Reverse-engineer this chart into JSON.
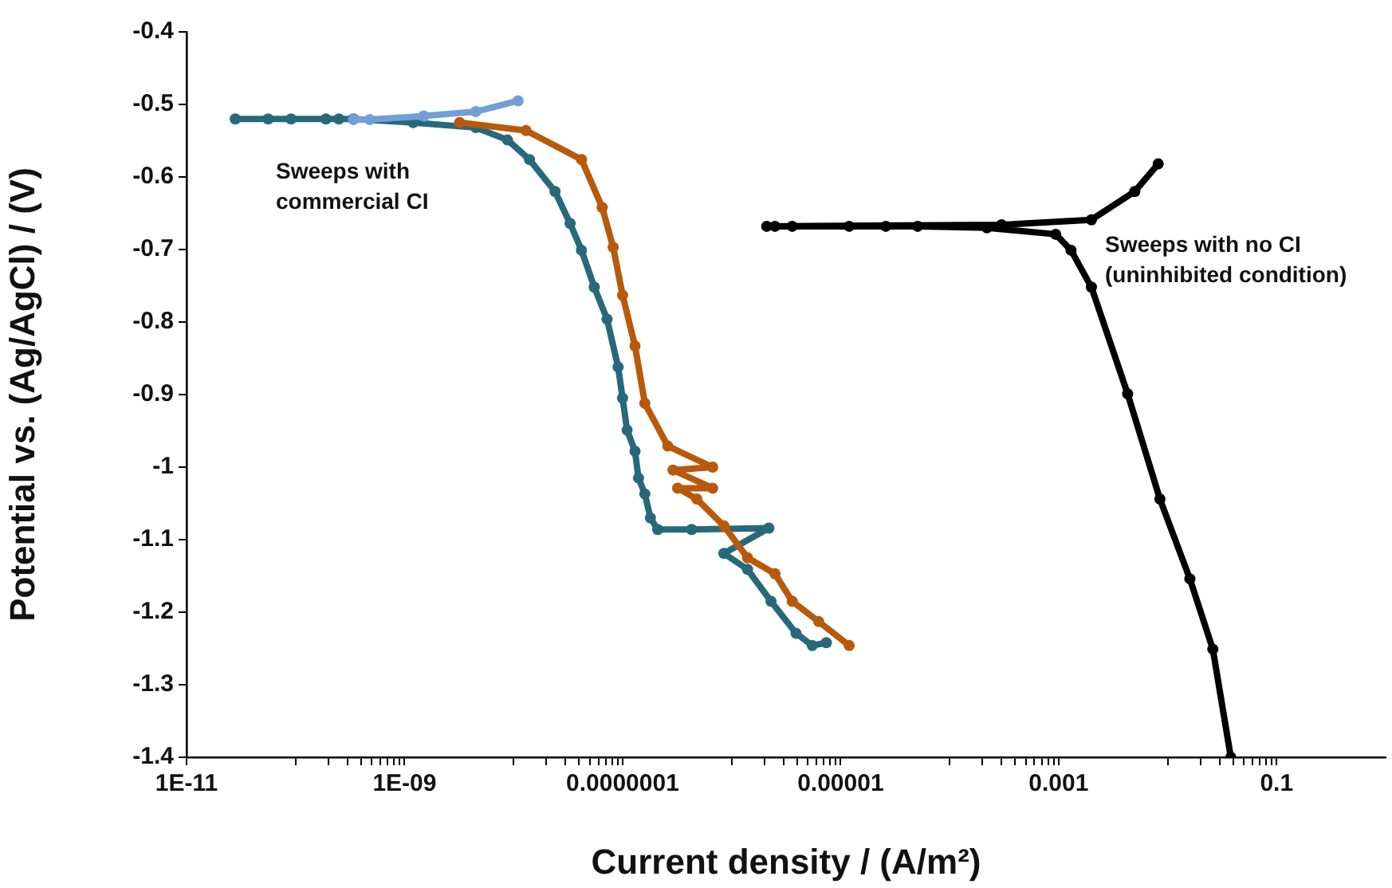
{
  "chart_data": {
    "type": "line",
    "xlabel": "Current density / (A/m²)",
    "ylabel": "Potential vs. (Ag/AgCl) / (V)",
    "log": "x",
    "marker": "circle",
    "line_style": "solid",
    "grid": false,
    "legend": false,
    "xlim": [
      1e-11,
      1
    ],
    "ylim": [
      -1.4,
      -0.4
    ],
    "yticks": [
      -1.4,
      -1.3,
      -1.2,
      -1.1,
      -1,
      -0.9,
      -0.8,
      -0.7,
      -0.6,
      -0.5,
      -0.4
    ],
    "xticks": [
      {
        "value": 1e-11,
        "label": "1E-11"
      },
      {
        "value": 1e-10,
        "label": null
      },
      {
        "value": 2e-10,
        "label": null
      },
      {
        "value": 3e-10,
        "label": null
      },
      {
        "value": 4e-10,
        "label": null
      },
      {
        "value": 5e-10,
        "label": null
      },
      {
        "value": 6e-10,
        "label": null
      },
      {
        "value": 7e-10,
        "label": null
      },
      {
        "value": 8e-10,
        "label": null
      },
      {
        "value": 9e-10,
        "label": null
      },
      {
        "value": 1e-09,
        "label": "1E-09"
      },
      {
        "value": 1e-08,
        "label": null
      },
      {
        "value": 2e-08,
        "label": null
      },
      {
        "value": 3e-08,
        "label": null
      },
      {
        "value": 4e-08,
        "label": null
      },
      {
        "value": 5e-08,
        "label": null
      },
      {
        "value": 6e-08,
        "label": null
      },
      {
        "value": 7e-08,
        "label": null
      },
      {
        "value": 8e-08,
        "label": null
      },
      {
        "value": 9e-08,
        "label": null
      },
      {
        "value": 1e-07,
        "label": "0.0000001"
      },
      {
        "value": 1e-06,
        "label": null
      },
      {
        "value": 2e-06,
        "label": null
      },
      {
        "value": 3e-06,
        "label": null
      },
      {
        "value": 4e-06,
        "label": null
      },
      {
        "value": 5e-06,
        "label": null
      },
      {
        "value": 6e-06,
        "label": null
      },
      {
        "value": 7e-06,
        "label": null
      },
      {
        "value": 8e-06,
        "label": null
      },
      {
        "value": 9e-06,
        "label": null
      },
      {
        "value": 1e-05,
        "label": "0.00001"
      },
      {
        "value": 0.0001,
        "label": null
      },
      {
        "value": 0.0002,
        "label": null
      },
      {
        "value": 0.0003,
        "label": null
      },
      {
        "value": 0.0004,
        "label": null
      },
      {
        "value": 0.0005,
        "label": null
      },
      {
        "value": 0.0006,
        "label": null
      },
      {
        "value": 0.0007,
        "label": null
      },
      {
        "value": 0.0008,
        "label": null
      },
      {
        "value": 0.0009,
        "label": null
      },
      0.001,
      {
        "value": 0.01,
        "label": null
      },
      {
        "value": 0.02,
        "label": null
      },
      {
        "value": 0.03,
        "label": null
      },
      {
        "value": 0.04,
        "label": null
      },
      {
        "value": 0.05,
        "label": null
      },
      {
        "value": 0.06,
        "label": null
      },
      {
        "value": 0.07,
        "label": null
      },
      {
        "value": 0.08,
        "label": null
      },
      {
        "value": 0.09,
        "label": null
      },
      0.1
    ],
    "annotations": [
      "Sweeps with\ncommercial CI",
      "Sweeps with no CI\n(uninhibited condition)"
    ],
    "series": [
      {
        "color": "#27697a",
        "x": [
          2.8e-11,
          5.6e-11,
          9.1e-11,
          1.9e-10,
          2.5e-10,
          3.4e-10,
          1.2e-09,
          4.5e-09,
          8.8e-09,
          1.4e-08,
          2.4e-08,
          3.3e-08,
          4.2e-08,
          5.5e-08,
          7.2e-08,
          9.1e-08,
          1e-07,
          1.1e-07,
          1.3e-07,
          1.4e-07,
          1.6e-07,
          1.8e-07,
          2.1e-07,
          4.3e-07,
          2.2e-06,
          8.5e-07,
          1.4e-06,
          2.3e-06,
          3.9e-06,
          5.5e-06,
          7.4e-06
        ],
        "values": [
          -0.52,
          -0.52,
          -0.52,
          -0.52,
          -0.52,
          -0.52,
          -0.525,
          -0.532,
          -0.549,
          -0.576,
          -0.62,
          -0.664,
          -0.701,
          -0.752,
          -0.796,
          -0.862,
          -0.905,
          -0.949,
          -0.978,
          -1.015,
          -1.037,
          -1.07,
          -1.086,
          -1.086,
          -1.084,
          -1.119,
          -1.141,
          -1.185,
          -1.229,
          -1.246,
          -1.242
        ]
      },
      {
        "color": "#b8590b",
        "x": [
          3.2e-09,
          1.3e-08,
          4.2e-08,
          6.5e-08,
          8.2e-08,
          1e-07,
          1.3e-07,
          1.6e-07,
          2.6e-07,
          6.7e-07,
          2.9e-07,
          6.7e-07,
          3.2e-07,
          4.8e-07,
          8.5e-07,
          1.4e-06,
          2.5e-06,
          3.6e-06,
          6.3e-06,
          1.2e-05
        ],
        "values": [
          -0.525,
          -0.536,
          -0.576,
          -0.642,
          -0.697,
          -0.763,
          -0.833,
          -0.912,
          -0.971,
          -1.0,
          -1.004,
          -1.029,
          -1.029,
          -1.044,
          -1.081,
          -1.125,
          -1.147,
          -1.185,
          -1.213,
          -1.246
        ]
      },
      {
        "color": "#729fd4",
        "x": [
          3.4e-10,
          4.8e-10,
          1.5e-09,
          4.5e-09,
          1.1e-08
        ],
        "values": [
          -0.521,
          -0.521,
          -0.516,
          -0.51,
          -0.495
        ]
      },
      {
        "color": "#000000",
        "x": [
          0.038,
          0.026,
          0.016,
          0.0085,
          0.0043,
          0.002,
          0.0013,
          0.00094,
          0.00022,
          5.1e-05,
          2.6e-05,
          1.2e-05,
          3.6e-06,
          2.5e-06,
          2.1e-06,
          0.0003,
          0.002,
          0.005,
          0.0082
        ],
        "values": [
          -1.4,
          -1.251,
          -1.154,
          -1.044,
          -0.899,
          -0.752,
          -0.701,
          -0.679,
          -0.67,
          -0.668,
          -0.668,
          -0.668,
          -0.668,
          -0.668,
          -0.668,
          -0.666,
          -0.659,
          -0.62,
          -0.582
        ]
      }
    ]
  }
}
